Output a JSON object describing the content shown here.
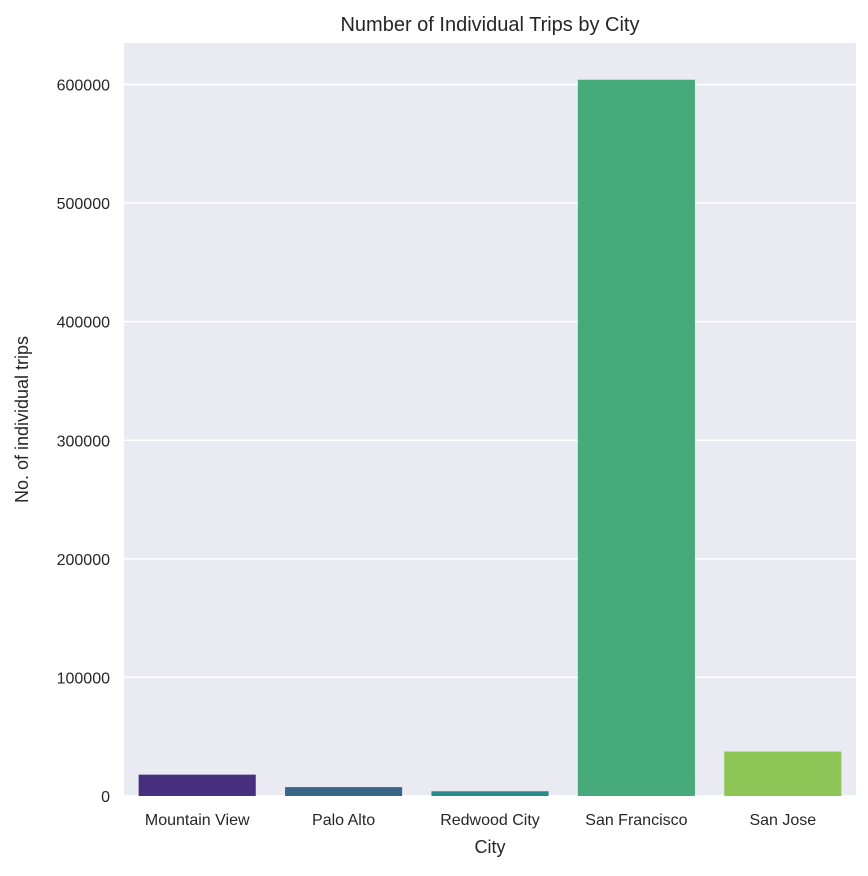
{
  "chart_data": {
    "type": "bar",
    "title": "Number of Individual Trips by City",
    "xlabel": "City",
    "ylabel": "No. of individual trips",
    "categories": [
      "Mountain View",
      "Palo Alto",
      "Redwood City",
      "San Francisco",
      "San Jose"
    ],
    "values": [
      18000,
      7500,
      4000,
      604000,
      37500
    ],
    "colors": [
      "#472f7d",
      "#3a6685",
      "#288a8a",
      "#47aa7a",
      "#8dc556"
    ],
    "ylim": [
      0,
      635000
    ],
    "yticks": [
      0,
      100000,
      200000,
      300000,
      400000,
      500000,
      600000
    ],
    "ytick_labels": [
      "0",
      "100000",
      "200000",
      "300000",
      "400000",
      "500000",
      "600000"
    ],
    "grid": true,
    "plot_background": "#eaeaf2",
    "grid_color": "#ffffff"
  }
}
